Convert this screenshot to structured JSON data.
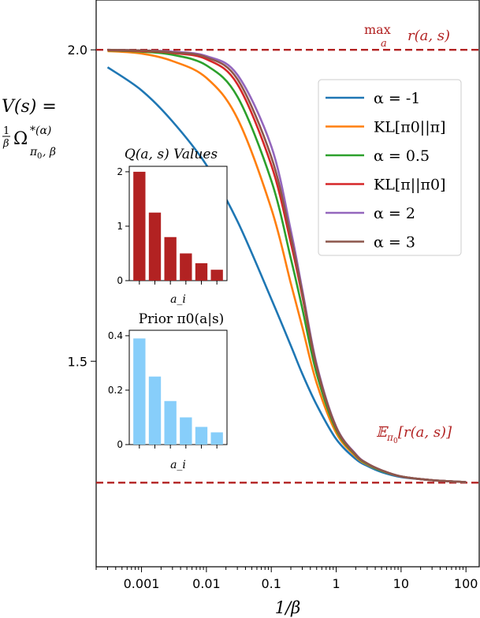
{
  "chart_data": [
    {
      "id": "main",
      "type": "line",
      "x_scale": "log",
      "xlim": [
        0.0002,
        160
      ],
      "ylim": [
        1.17,
        2.08
      ],
      "xlabel": "1/β",
      "ylabel_line1": "V(s) =",
      "ylabel_line2": "1/β Ω*(α) π0,β",
      "x_ticks": [
        {
          "value": 0.001,
          "label": "0.001"
        },
        {
          "value": 0.01,
          "label": "0.01"
        },
        {
          "value": 0.1,
          "label": "0.1"
        },
        {
          "value": 1,
          "label": "1"
        },
        {
          "value": 10,
          "label": "10"
        },
        {
          "value": 100,
          "label": "100"
        }
      ],
      "y_ticks": [
        {
          "value": 2.0,
          "label": "2.0"
        },
        {
          "value": 1.5,
          "label": "1.5"
        }
      ],
      "reference_lines": [
        {
          "y": 2.0,
          "label": "max_a r(a, s)",
          "color": "#b22222"
        },
        {
          "y": 1.305,
          "label": "E_π0[r(a, s)]",
          "color": "#b22222"
        }
      ],
      "x": [
        0.0003,
        0.001,
        0.003,
        0.01,
        0.03,
        0.1,
        0.2,
        0.3,
        0.5,
        1,
        2,
        3,
        5,
        10,
        30,
        100
      ],
      "series": [
        {
          "name": "α = -1",
          "color": "#1f77b4",
          "values": [
            1.972,
            1.935,
            1.885,
            1.815,
            1.725,
            1.6,
            1.525,
            1.48,
            1.43,
            1.375,
            1.343,
            1.332,
            1.322,
            1.314,
            1.309,
            1.306
          ]
        },
        {
          "name": "KL[π0||π]",
          "color": "#ff7f0e",
          "values": [
            1.998,
            1.994,
            1.982,
            1.955,
            1.89,
            1.745,
            1.625,
            1.555,
            1.465,
            1.385,
            1.347,
            1.334,
            1.324,
            1.315,
            1.309,
            1.306
          ]
        },
        {
          "name": "α = 0.5",
          "color": "#2ca02c",
          "values": [
            1.999,
            1.997,
            1.992,
            1.975,
            1.925,
            1.79,
            1.665,
            1.585,
            1.48,
            1.39,
            1.349,
            1.335,
            1.324,
            1.315,
            1.309,
            1.306
          ]
        },
        {
          "name": "KL[π||π0]",
          "color": "#d62728",
          "values": [
            1.9995,
            1.998,
            1.995,
            1.985,
            1.945,
            1.815,
            1.69,
            1.605,
            1.49,
            1.393,
            1.35,
            1.336,
            1.325,
            1.315,
            1.309,
            1.306
          ]
        },
        {
          "name": "α = 2",
          "color": "#9467bd",
          "values": [
            2.0,
            1.999,
            1.997,
            1.99,
            1.96,
            1.845,
            1.71,
            1.615,
            1.495,
            1.395,
            1.351,
            1.336,
            1.325,
            1.315,
            1.309,
            1.306
          ]
        },
        {
          "name": "α = 3",
          "color": "#8c564b",
          "values": [
            2.0,
            1.999,
            1.996,
            1.988,
            1.953,
            1.828,
            1.7,
            1.61,
            1.492,
            1.394,
            1.35,
            1.336,
            1.325,
            1.315,
            1.309,
            1.306
          ]
        }
      ],
      "legend_position": "upper-right"
    },
    {
      "id": "q-inset",
      "type": "bar",
      "title": "Q(a, s) Values",
      "xlabel": "a_i",
      "values": [
        2.0,
        1.25,
        0.8,
        0.5,
        0.32,
        0.2
      ],
      "ylim": [
        0,
        2.1
      ],
      "y_ticks": [
        0,
        1,
        2
      ],
      "color": "#b22222"
    },
    {
      "id": "prior-inset",
      "type": "bar",
      "title": "Prior π0(a|s)",
      "xlabel": "a_i",
      "values": [
        0.39,
        0.25,
        0.16,
        0.1,
        0.065,
        0.045
      ],
      "ylim": [
        0,
        0.42
      ],
      "y_ticks": [
        0,
        0.2,
        0.4
      ],
      "y_tick_labels": [
        "0",
        "0.2",
        "0.4"
      ],
      "color": "#87cefa"
    }
  ]
}
